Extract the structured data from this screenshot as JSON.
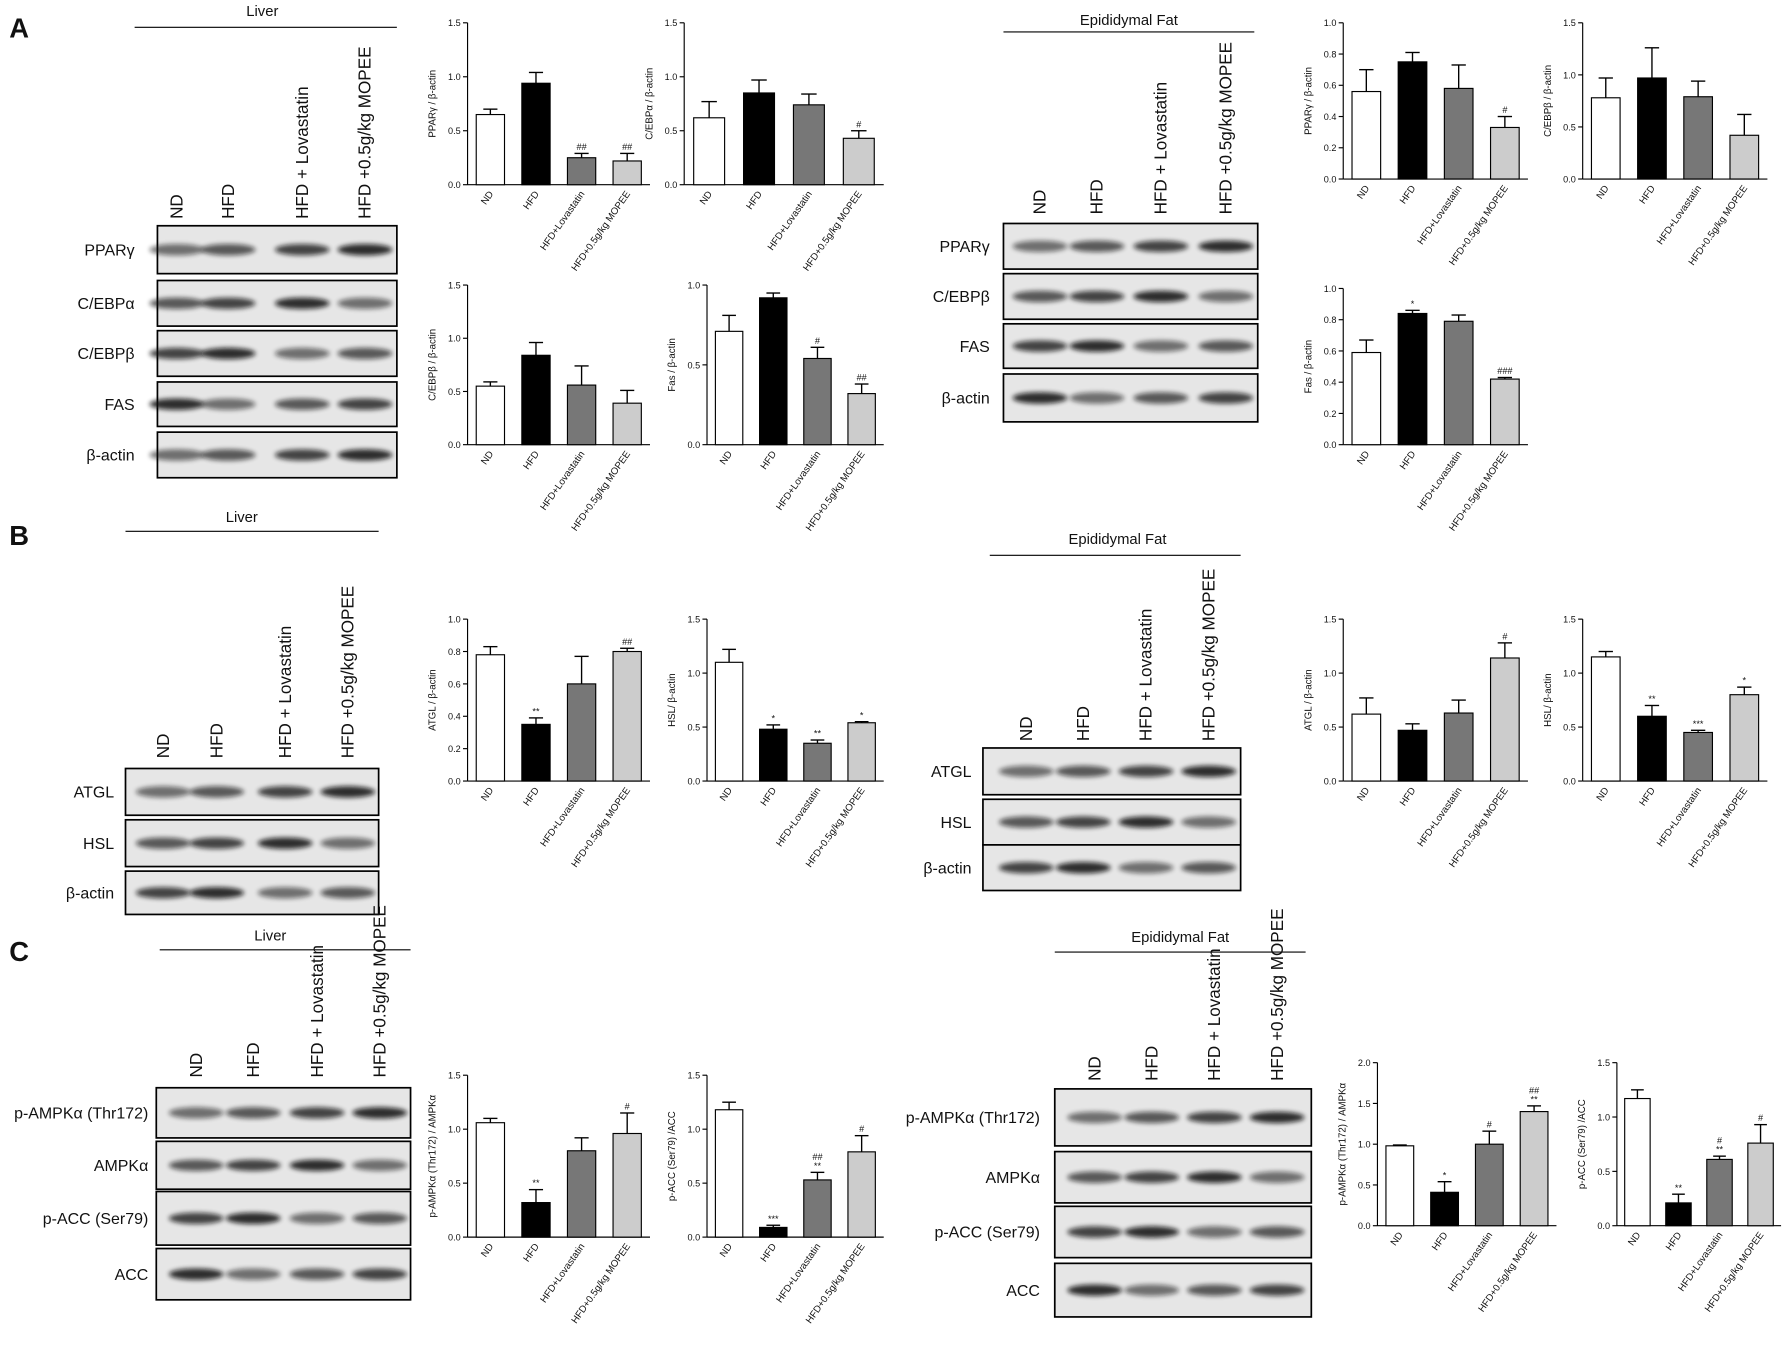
{
  "panel_labels": [
    "A",
    "B",
    "C"
  ],
  "blots": [
    {
      "title": "Liver",
      "lanes": [
        "ND",
        "HFD",
        "HFD + Lovastatin",
        "HFD +0.5g/kg MOPEE"
      ],
      "rows": [
        "PPARγ",
        "C/EBPα",
        "C/EBPβ",
        "FAS",
        "β-actin"
      ]
    },
    {
      "title": "Epididymal Fat",
      "lanes": [
        "ND",
        "HFD",
        "HFD + Lovastatin",
        "HFD +0.5g/kg MOPEE"
      ],
      "rows": [
        "PPARγ",
        "C/EBPβ",
        "FAS",
        "β-actin"
      ]
    },
    {
      "title": "Liver",
      "lanes": [
        "ND",
        "HFD",
        "HFD + Lovastatin",
        "HFD +0.5g/kg MOPEE"
      ],
      "rows": [
        "ATGL",
        "HSL",
        "β-actin"
      ]
    },
    {
      "title": "Epididymal Fat",
      "lanes": [
        "ND",
        "HFD",
        "HFD + Lovastatin",
        "HFD +0.5g/kg MOPEE"
      ],
      "rows": [
        "ATGL",
        "HSL",
        "β-actin"
      ]
    },
    {
      "title": "Liver",
      "lanes": [
        "ND",
        "HFD",
        "HFD + Lovastatin",
        "HFD +0.5g/kg MOPEE"
      ],
      "rows": [
        "p-AMPKα (Thr172)",
        "AMPKα",
        "p-ACC (Ser79)",
        "ACC"
      ]
    },
    {
      "title": "Epididymal Fat",
      "lanes": [
        "ND",
        "HFD",
        "HFD + Lovastatin",
        "HFD +0.5g/kg MOPEE"
      ],
      "rows": [
        "p-AMPKα (Thr172)",
        "AMPKα",
        "p-ACC (Ser79)",
        "ACC"
      ]
    }
  ],
  "chart_data": [
    {
      "type": "bar",
      "ylabel": "PPARγ / β-actin",
      "categories": [
        "ND",
        "HFD",
        "HFD+Lovastatin",
        "HFD+0.5g/kg MOPEE"
      ],
      "colors": [
        "#ffffff",
        "#000000",
        "#777777",
        "#cccccc"
      ],
      "values": [
        0.65,
        0.94,
        0.25,
        0.22
      ],
      "error": [
        0.05,
        0.1,
        0.04,
        0.07
      ],
      "annotations": [
        null,
        null,
        [
          "##"
        ],
        [
          "##"
        ]
      ],
      "ylim": [
        0,
        1.5
      ],
      "yticks": [
        {
          "value": 0,
          "label": "0.0"
        },
        0.5,
        {
          "value": 1,
          "label": "1.0"
        },
        1.5
      ]
    },
    {
      "type": "bar",
      "ylabel": "C/EBPα / β-actin",
      "categories": [
        "ND",
        "HFD",
        "HFD+Lovastatin",
        "HFD+0.5g/kg MOPEE"
      ],
      "colors": [
        "#ffffff",
        "#000000",
        "#777777",
        "#cccccc"
      ],
      "values": [
        0.62,
        0.85,
        0.74,
        0.43
      ],
      "error": [
        0.15,
        0.12,
        0.1,
        0.07
      ],
      "annotations": [
        null,
        null,
        null,
        [
          "#"
        ]
      ],
      "ylim": [
        0,
        1.5
      ],
      "yticks": [
        {
          "value": 0,
          "label": "0.0"
        },
        0.5,
        {
          "value": 1,
          "label": "1.0"
        },
        1.5
      ]
    },
    {
      "type": "bar",
      "ylabel": "C/EBPβ / β-actin",
      "categories": [
        "ND",
        "HFD",
        "HFD+Lovastatin",
        "HFD+0.5g/kg MOPEE"
      ],
      "colors": [
        "#ffffff",
        "#000000",
        "#777777",
        "#cccccc"
      ],
      "values": [
        0.55,
        0.84,
        0.56,
        0.39
      ],
      "error": [
        0.04,
        0.12,
        0.18,
        0.12
      ],
      "annotations": [
        null,
        null,
        null,
        null
      ],
      "ylim": [
        0,
        1.5
      ],
      "yticks": [
        {
          "value": 0,
          "label": "0.0"
        },
        0.5,
        {
          "value": 1,
          "label": "1.0"
        },
        1.5
      ]
    },
    {
      "type": "bar",
      "ylabel": "Fas / β-actin",
      "categories": [
        "ND",
        "HFD",
        "HFD+Lovastatin",
        "HFD+0.5g/kg MOPEE"
      ],
      "colors": [
        "#ffffff",
        "#000000",
        "#777777",
        "#cccccc"
      ],
      "values": [
        0.71,
        0.92,
        0.54,
        0.32
      ],
      "error": [
        0.1,
        0.03,
        0.07,
        0.06
      ],
      "annotations": [
        null,
        null,
        [
          "#"
        ],
        [
          "##"
        ]
      ],
      "ylim": [
        0,
        1
      ],
      "yticks": [
        {
          "value": 0,
          "label": "0.0"
        },
        0.5,
        {
          "value": 1,
          "label": "1.0"
        }
      ]
    },
    {
      "type": "bar",
      "ylabel": "PPARγ / β-actin",
      "categories": [
        "ND",
        "HFD",
        "HFD+Lovastatin",
        "HFD+0.5g/kg MOPEE"
      ],
      "colors": [
        "#ffffff",
        "#000000",
        "#777777",
        "#cccccc"
      ],
      "values": [
        0.56,
        0.75,
        0.58,
        0.33
      ],
      "error": [
        0.14,
        0.06,
        0.15,
        0.07
      ],
      "annotations": [
        null,
        null,
        null,
        [
          "#"
        ]
      ],
      "ylim": [
        0,
        1
      ],
      "yticks": [
        {
          "value": 0,
          "label": "0.0"
        },
        0.2,
        0.4,
        0.6,
        0.8,
        {
          "value": 1,
          "label": "1.0"
        }
      ]
    },
    {
      "type": "bar",
      "ylabel": "C/EBPβ / β-actin",
      "categories": [
        "ND",
        "HFD",
        "HFD+Lovastatin",
        "HFD+0.5g/kg MOPEE"
      ],
      "colors": [
        "#ffffff",
        "#000000",
        "#777777",
        "#cccccc"
      ],
      "values": [
        0.78,
        0.97,
        0.79,
        0.42
      ],
      "error": [
        0.19,
        0.29,
        0.15,
        0.2
      ],
      "annotations": [
        null,
        null,
        null,
        null
      ],
      "ylim": [
        0,
        1.5
      ],
      "yticks": [
        {
          "value": 0,
          "label": "0.0"
        },
        0.5,
        {
          "value": 1,
          "label": "1.0"
        },
        1.5
      ]
    },
    {
      "type": "bar",
      "ylabel": "Fas / β-actin",
      "categories": [
        "ND",
        "HFD",
        "HFD+Lovastatin",
        "HFD+0.5g/kg MOPEE"
      ],
      "colors": [
        "#ffffff",
        "#000000",
        "#777777",
        "#cccccc"
      ],
      "values": [
        0.59,
        0.84,
        0.79,
        0.42
      ],
      "error": [
        0.08,
        0.02,
        0.04,
        0.01
      ],
      "annotations": [
        null,
        [
          "*"
        ],
        null,
        [
          "###"
        ]
      ],
      "ylim": [
        0,
        1
      ],
      "yticks": [
        {
          "value": 0,
          "label": "0.0"
        },
        0.2,
        0.4,
        0.6,
        0.8,
        {
          "value": 1,
          "label": "1.0"
        }
      ]
    },
    {
      "type": "bar",
      "ylabel": "ATGL / β-actin",
      "categories": [
        "ND",
        "HFD",
        "HFD+Lovastatin",
        "HFD+0.5g/kg MOPEE"
      ],
      "colors": [
        "#ffffff",
        "#000000",
        "#777777",
        "#cccccc"
      ],
      "values": [
        0.78,
        0.35,
        0.6,
        0.8
      ],
      "error": [
        0.05,
        0.04,
        0.17,
        0.02
      ],
      "annotations": [
        null,
        [
          "**"
        ],
        null,
        [
          "##"
        ]
      ],
      "ylim": [
        0,
        1
      ],
      "yticks": [
        {
          "value": 0,
          "label": "0.0"
        },
        0.2,
        0.4,
        0.6,
        0.8,
        {
          "value": 1,
          "label": "1.0"
        }
      ]
    },
    {
      "type": "bar",
      "ylabel": "HSL/ β-actin",
      "categories": [
        "ND",
        "HFD",
        "HFD+Lovastatin",
        "HFD+0.5g/kg MOPEE"
      ],
      "colors": [
        "#ffffff",
        "#000000",
        "#777777",
        "#cccccc"
      ],
      "values": [
        1.1,
        0.48,
        0.35,
        0.54
      ],
      "error": [
        0.12,
        0.04,
        0.03,
        0.01
      ],
      "annotations": [
        null,
        [
          "*"
        ],
        [
          "**"
        ],
        [
          "*"
        ]
      ],
      "ylim": [
        0,
        1.5
      ],
      "yticks": [
        {
          "value": 0,
          "label": "0.0"
        },
        0.5,
        {
          "value": 1,
          "label": "1.0"
        },
        1.5
      ]
    },
    {
      "type": "bar",
      "ylabel": "ATGL / β-actin",
      "categories": [
        "ND",
        "HFD",
        "HFD+Lovastatin",
        "HFD+0.5g/kg MOPEE"
      ],
      "colors": [
        "#ffffff",
        "#000000",
        "#777777",
        "#cccccc"
      ],
      "values": [
        0.62,
        0.47,
        0.63,
        1.14
      ],
      "error": [
        0.15,
        0.06,
        0.12,
        0.14
      ],
      "annotations": [
        null,
        null,
        null,
        [
          "#"
        ]
      ],
      "ylim": [
        0,
        1.5
      ],
      "yticks": [
        {
          "value": 0,
          "label": "0.0"
        },
        0.5,
        {
          "value": 1,
          "label": "1.0"
        },
        1.5
      ]
    },
    {
      "type": "bar",
      "ylabel": "HSL/ β-actin",
      "categories": [
        "ND",
        "HFD",
        "HFD+Lovastatin",
        "HFD+0.5g/kg MOPEE"
      ],
      "colors": [
        "#ffffff",
        "#000000",
        "#777777",
        "#cccccc"
      ],
      "values": [
        1.15,
        0.6,
        0.45,
        0.8
      ],
      "error": [
        0.05,
        0.1,
        0.02,
        0.07
      ],
      "annotations": [
        null,
        [
          "**"
        ],
        [
          "***"
        ],
        [
          "*"
        ]
      ],
      "ylim": [
        0,
        1.5
      ],
      "yticks": [
        {
          "value": 0,
          "label": "0.0"
        },
        0.5,
        {
          "value": 1,
          "label": "1.0"
        },
        1.5
      ]
    },
    {
      "type": "bar",
      "ylabel": "p-AMPKα (Thr172) / AMPKα",
      "categories": [
        "ND",
        "HFD",
        "HFD+Lovastatin",
        "HFD+0.5g/kg MOPEE"
      ],
      "colors": [
        "#ffffff",
        "#000000",
        "#777777",
        "#cccccc"
      ],
      "values": [
        1.06,
        0.32,
        0.8,
        0.96
      ],
      "error": [
        0.04,
        0.12,
        0.12,
        0.19
      ],
      "annotations": [
        null,
        [
          "**"
        ],
        null,
        [
          "#"
        ]
      ],
      "ylim": [
        0,
        1.5
      ],
      "yticks": [
        {
          "value": 0,
          "label": "0.0"
        },
        0.5,
        {
          "value": 1,
          "label": "1.0"
        },
        1.5
      ]
    },
    {
      "type": "bar",
      "ylabel": "p-ACC (Ser79) /ACC",
      "categories": [
        "ND",
        "HFD",
        "HFD+Lovastatin",
        "HFD+0.5g/kg MOPEE"
      ],
      "colors": [
        "#ffffff",
        "#000000",
        "#777777",
        "#cccccc"
      ],
      "values": [
        1.18,
        0.09,
        0.53,
        0.79
      ],
      "error": [
        0.07,
        0.02,
        0.07,
        0.15
      ],
      "annotations": [
        null,
        [
          "***"
        ],
        [
          "##",
          "**"
        ],
        [
          "#"
        ]
      ],
      "ylim": [
        0,
        1.5
      ],
      "yticks": [
        {
          "value": 0,
          "label": "0.0"
        },
        0.5,
        {
          "value": 1,
          "label": "1.0"
        },
        1.5
      ]
    },
    {
      "type": "bar",
      "ylabel": "p-AMPKα (Thr172) / AMPKα",
      "categories": [
        "ND",
        "HFD",
        "HFD+Lovastatin",
        "HFD+0.5g/kg MOPEE"
      ],
      "colors": [
        "#ffffff",
        "#000000",
        "#777777",
        "#cccccc"
      ],
      "values": [
        0.98,
        0.41,
        1.0,
        1.4
      ],
      "error": [
        0.01,
        0.13,
        0.16,
        0.07
      ],
      "annotations": [
        null,
        [
          "*"
        ],
        [
          "#"
        ],
        [
          "##",
          "**"
        ]
      ],
      "ylim": [
        0,
        2
      ],
      "yticks": [
        {
          "value": 0,
          "label": "0.0"
        },
        0.5,
        {
          "value": 1,
          "label": "1.0"
        },
        1.5,
        {
          "value": 2,
          "label": "2.0"
        }
      ]
    },
    {
      "type": "bar",
      "ylabel": "p-ACC (Ser79) /ACC",
      "categories": [
        "ND",
        "HFD",
        "HFD+Lovastatin",
        "HFD+0.5g/kg MOPEE"
      ],
      "colors": [
        "#ffffff",
        "#000000",
        "#777777",
        "#cccccc"
      ],
      "values": [
        1.17,
        0.21,
        0.61,
        0.76
      ],
      "error": [
        0.08,
        0.08,
        0.03,
        0.17
      ],
      "annotations": [
        null,
        [
          "**"
        ],
        [
          "#",
          "**"
        ],
        [
          "#"
        ]
      ],
      "ylim": [
        0,
        1.5
      ],
      "yticks": [
        {
          "value": 0,
          "label": "0.0"
        },
        0.5,
        {
          "value": 1,
          "label": "1.0"
        },
        1.5
      ]
    }
  ]
}
